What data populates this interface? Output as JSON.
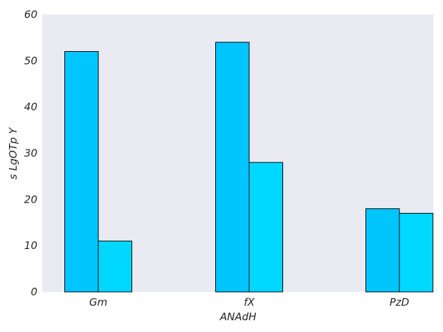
{
  "chart_data": {
    "type": "bar",
    "categories": [
      "Gm",
      "fX",
      "PzD"
    ],
    "series": [
      {
        "values": [
          52,
          54,
          18
        ],
        "color": "#00c5ff"
      },
      {
        "values": [
          11,
          28,
          17
        ],
        "color": "#00d8ff"
      }
    ],
    "xlabel": "ANAdH",
    "ylabel": "s LgOTp Y",
    "ylim": [
      0,
      60
    ],
    "yticks": [
      "0",
      "10",
      "20",
      "30",
      "40",
      "50",
      "60"
    ],
    "grid": false,
    "background": "#eaeaf2",
    "legend": "none"
  }
}
